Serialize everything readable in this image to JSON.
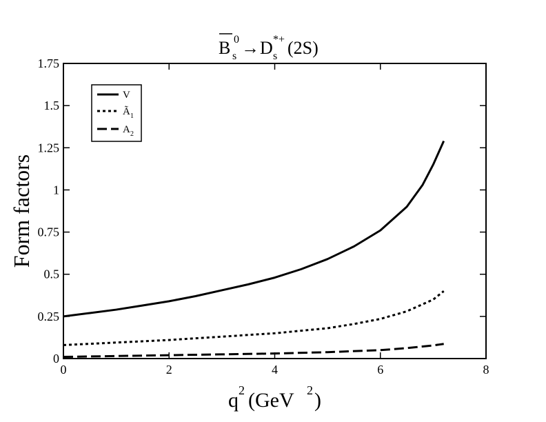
{
  "chart_data": {
    "type": "line",
    "title": {
      "bar_letter": "B",
      "bar_sub": "s",
      "bar_sup": "0",
      "arrow": "→",
      "d_letter": "D",
      "d_sub": "s",
      "d_sup": "*+",
      "suffix": "(2S)"
    },
    "ylabel": "Form factors",
    "xlabel": {
      "q": "q",
      "q_sup": "2",
      "mid": "(GeV",
      "mid_sup": "2",
      "end": ")"
    },
    "xlim": [
      0,
      8
    ],
    "ylim": [
      0,
      1.75
    ],
    "x_ticks": [
      {
        "value": 0,
        "label": "0"
      },
      {
        "value": 2,
        "label": "2"
      },
      {
        "value": 4,
        "label": "4"
      },
      {
        "value": 6,
        "label": "6"
      },
      {
        "value": 8,
        "label": "8"
      }
    ],
    "y_ticks": [
      {
        "value": 0,
        "label": "0"
      },
      {
        "value": 0.25,
        "label": "0.25"
      },
      {
        "value": 0.5,
        "label": "0.5"
      },
      {
        "value": 0.75,
        "label": "0.75"
      },
      {
        "value": 1,
        "label": "1"
      },
      {
        "value": 1.25,
        "label": "1.25"
      },
      {
        "value": 1.5,
        "label": "1.5"
      },
      {
        "value": 1.75,
        "label": "1.75"
      }
    ],
    "grid": false,
    "legend_position": "top-left",
    "series": [
      {
        "key": "V",
        "name": "V",
        "legend_main": "V",
        "legend_sub": "",
        "style": "solid",
        "color": "#000000",
        "x": [
          0,
          0.5,
          1,
          1.5,
          2,
          2.5,
          3,
          3.5,
          4,
          4.5,
          5,
          5.5,
          6,
          6.5,
          6.8,
          7.0,
          7.2
        ],
        "y": [
          0.25,
          0.27,
          0.29,
          0.315,
          0.34,
          0.37,
          0.405,
          0.44,
          0.48,
          0.53,
          0.59,
          0.665,
          0.76,
          0.9,
          1.03,
          1.15,
          1.29
        ]
      },
      {
        "key": "A1t",
        "name": "Ã1",
        "legend_main": "Ã",
        "legend_sub": "1",
        "style": "dotted",
        "color": "#000000",
        "x": [
          0,
          1,
          2,
          3,
          4,
          4.5,
          5,
          5.5,
          6,
          6.5,
          7.0,
          7.2
        ],
        "y": [
          0.08,
          0.095,
          0.11,
          0.13,
          0.15,
          0.165,
          0.18,
          0.205,
          0.235,
          0.28,
          0.35,
          0.4
        ]
      },
      {
        "key": "A2",
        "name": "A2",
        "legend_main": "A",
        "legend_sub": "2",
        "style": "dashed",
        "color": "#000000",
        "x": [
          0,
          1,
          2,
          3,
          4,
          5,
          6,
          6.5,
          7.0,
          7.2
        ],
        "y": [
          0.01,
          0.015,
          0.02,
          0.025,
          0.03,
          0.038,
          0.05,
          0.062,
          0.078,
          0.087
        ]
      }
    ]
  }
}
